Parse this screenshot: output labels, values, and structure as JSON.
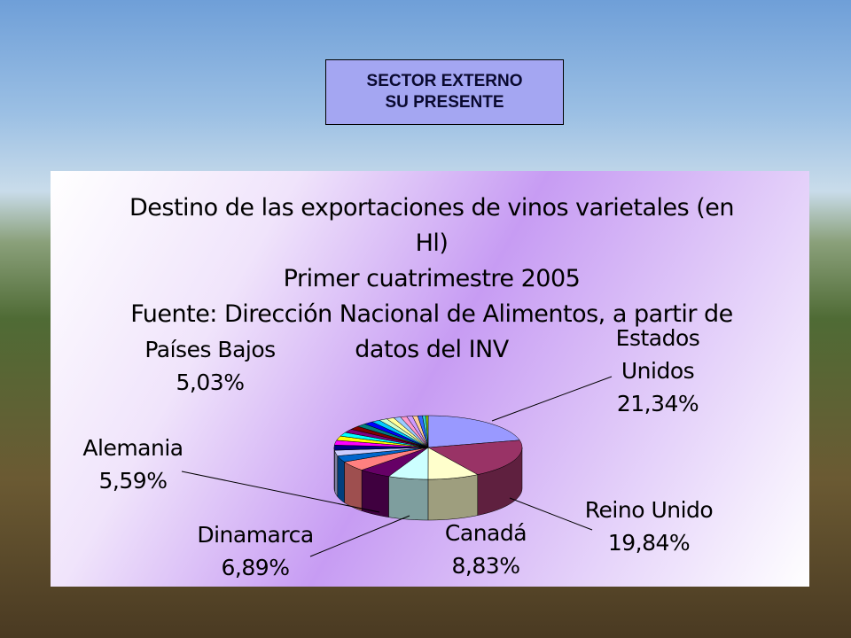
{
  "slide": {
    "header": [
      "SECTOR EXTERNO",
      "SU PRESENTE"
    ]
  },
  "chart_data": {
    "type": "pie",
    "title": "Destino de las exportaciones de vinos varietales (en Hl)",
    "subtitle": "Primer cuatrimestre 2005",
    "source": "Fuente: Dirección Nacional de Alimentos, a partir de datos del INV",
    "categories": [
      "Estados Unidos",
      "Reino Unido",
      "Canadá",
      "Dinamarca",
      "Alemania",
      "Países Bajos",
      null,
      null,
      null,
      null,
      null,
      null,
      null,
      null,
      null,
      null,
      null,
      null,
      null,
      null,
      null,
      null,
      null,
      null,
      null,
      null
    ],
    "values": [
      21.34,
      19.84,
      8.83,
      6.89,
      5.59,
      5.03,
      3.2,
      2.9,
      2.6,
      2.4,
      2.2,
      2.0,
      1.9,
      1.8,
      1.7,
      1.6,
      1.5,
      1.4,
      1.3,
      1.2,
      1.1,
      1.0,
      0.9,
      0.8,
      0.6,
      0.38
    ],
    "value_labels": [
      "21,34%",
      "19,84%",
      "8,83%",
      "6,89%",
      "5,59%",
      "5,03%",
      null,
      null,
      null,
      null,
      null,
      null,
      null,
      null,
      null,
      null,
      null,
      null,
      null,
      null,
      null,
      null,
      null,
      null,
      null,
      null
    ],
    "colors": [
      "#9999ff",
      "#993366",
      "#ffffcc",
      "#ccffff",
      "#660066",
      "#ff8080",
      "#0066cc",
      "#ccccff",
      "#000080",
      "#ff00ff",
      "#ffff00",
      "#00ffff",
      "#800080",
      "#800000",
      "#008080",
      "#0000ff",
      "#00ccff",
      "#ccffcc",
      "#ffff99",
      "#99ccff",
      "#ff99cc",
      "#cc99ff",
      "#ffcc99",
      "#3366ff",
      "#33cccc",
      "#99cc00"
    ]
  }
}
